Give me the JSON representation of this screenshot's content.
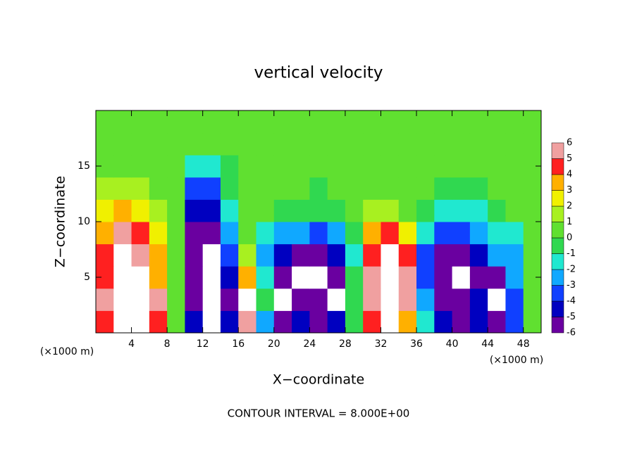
{
  "chart_data": {
    "type": "heatmap",
    "title": "vertical velocity",
    "xlabel": "X−coordinate",
    "ylabel": "Z−coordinate",
    "xunit": "(×1000 m)",
    "note": "CONTOUR INTERVAL = 8.000E+00",
    "xlim": [
      0,
      50
    ],
    "ylim": [
      0,
      20
    ],
    "xticks": [
      4,
      8,
      12,
      16,
      20,
      24,
      28,
      32,
      36,
      40,
      44,
      48
    ],
    "yticks": [
      5,
      10,
      15
    ],
    "x": [
      1,
      3,
      5,
      7,
      9,
      11,
      13,
      15,
      17,
      19,
      21,
      23,
      25,
      27,
      29,
      31,
      33,
      35,
      37,
      39,
      41,
      43,
      45,
      47,
      49
    ],
    "z": [
      1,
      3,
      5,
      7,
      9,
      11,
      13,
      15,
      17,
      19
    ],
    "values": [
      [
        5,
        7,
        7,
        5,
        1,
        -4,
        -7,
        -4,
        6,
        -2,
        -5,
        -4,
        -5,
        -4,
        0,
        5,
        7,
        4,
        -1,
        -4,
        -5,
        -4,
        -5,
        -3,
        0.5
      ],
      [
        6,
        7,
        7,
        6,
        1,
        -5,
        -7,
        -5,
        7,
        0,
        -7,
        -5,
        -6,
        -7,
        0,
        6,
        7,
        6,
        -2,
        -5,
        -6,
        -4,
        -7,
        -3,
        0.5
      ],
      [
        5,
        7,
        7,
        4,
        0.5,
        -6,
        -7,
        -4,
        4,
        -1,
        -5,
        -7,
        -7,
        -6,
        0,
        6,
        7,
        6,
        -3,
        -6,
        -7,
        -5,
        -5,
        -2,
        0.5
      ],
      [
        5,
        7,
        6,
        4,
        0.5,
        -6,
        -7,
        -3,
        2,
        -2,
        -4,
        -5,
        -5,
        -4,
        -1,
        5,
        7,
        5,
        -3,
        -5,
        -5,
        -4,
        -2,
        -2,
        0.5
      ],
      [
        4,
        6,
        5,
        3,
        0.5,
        -6,
        -6,
        -2,
        0.5,
        -1,
        -2,
        -2,
        -3,
        -2,
        -0.5,
        4,
        5,
        3,
        -1,
        -3,
        -3,
        -2,
        -1,
        -1,
        0.5
      ],
      [
        3,
        4,
        3,
        2,
        0.5,
        -4,
        -4,
        -1,
        0.5,
        0.5,
        0,
        0,
        -0.5,
        0,
        0.5,
        2,
        2,
        1,
        0,
        -1,
        -1,
        -1,
        0,
        0.5,
        1
      ],
      [
        1.5,
        2,
        1.5,
        1,
        0.5,
        -3,
        -3,
        -0.5,
        0.5,
        0.5,
        0.5,
        0.5,
        0,
        0.5,
        0.5,
        1,
        1,
        0.5,
        0.5,
        0,
        0,
        0,
        0.5,
        1,
        1
      ],
      [
        0.5,
        1,
        1,
        0.5,
        0.5,
        -1,
        -1.5,
        0,
        0.5,
        0.5,
        0.5,
        0.5,
        0.5,
        0.5,
        0.5,
        0.5,
        0.5,
        0.5,
        0.5,
        0.5,
        0.5,
        0.5,
        0.5,
        1,
        1
      ],
      [
        0.5,
        0.5,
        0.5,
        0.5,
        0.5,
        0.5,
        0.5,
        0.5,
        0.5,
        0.5,
        0.5,
        0.5,
        0.5,
        0.5,
        0.5,
        0.5,
        0.5,
        0.5,
        0.5,
        0.5,
        0.5,
        0.5,
        1,
        1,
        1
      ],
      [
        0.5,
        0.5,
        0.5,
        0.5,
        0.5,
        0.5,
        0.5,
        0.5,
        0.5,
        0.5,
        0.5,
        0.5,
        0.5,
        0.5,
        0.5,
        0.5,
        0.5,
        0.5,
        0.5,
        0.5,
        0.5,
        0.5,
        0.5,
        0.5,
        0.5
      ]
    ],
    "colorbar": {
      "levels": [
        -6,
        -5,
        -4,
        -3,
        -2,
        -1,
        0,
        1,
        2,
        3,
        4,
        5,
        6
      ],
      "colors": [
        "#6a00a0",
        "#0000c0",
        "#1040ff",
        "#10a8ff",
        "#20e8d0",
        "#30d850",
        "#60e030",
        "#a8f020",
        "#f0f000",
        "#ffb000",
        "#ff2020",
        "#f0a0a0"
      ],
      "outside_color": "#ffffff"
    }
  }
}
